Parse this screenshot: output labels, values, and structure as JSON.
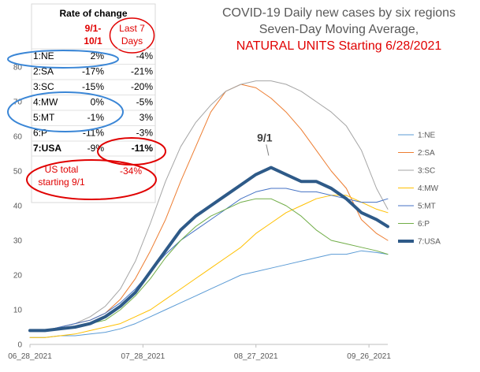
{
  "chart_data": {
    "type": "line",
    "title_lines": [
      {
        "text": "COVID-19 Daily new cases by six regions",
        "color": "#595959"
      },
      {
        "text": "Seven-Day Moving Average,",
        "color": "#595959"
      },
      {
        "text": "NATURAL UNITS Starting 6/28/2021",
        "color": "#e00000"
      }
    ],
    "x_tick_labels": [
      "06_28_2021",
      "07_28_2021",
      "08_27_2021",
      "09_26_2021"
    ],
    "x_tick_days": [
      0,
      30,
      60,
      90
    ],
    "ylim": [
      0,
      80
    ],
    "yticks": [
      0,
      10,
      20,
      30,
      40,
      50,
      60,
      70,
      80
    ],
    "x_range_days": [
      0,
      95
    ],
    "series": [
      {
        "name": "1:NE",
        "color": "#5b9bd5",
        "width": 1,
        "x": [
          0,
          4,
          8,
          12,
          16,
          20,
          24,
          28,
          32,
          36,
          40,
          44,
          48,
          52,
          56,
          60,
          64,
          68,
          72,
          76,
          80,
          84,
          88,
          92,
          95
        ],
        "values": [
          2,
          2,
          2.5,
          2.5,
          3,
          3.5,
          4.5,
          6,
          8,
          10,
          12,
          14,
          16,
          18,
          20,
          21,
          22,
          23,
          24,
          25,
          26,
          26,
          27,
          26.5,
          26
        ]
      },
      {
        "name": "2:SA",
        "color": "#ed7d31",
        "width": 1,
        "x": [
          0,
          4,
          8,
          12,
          16,
          20,
          24,
          28,
          32,
          36,
          40,
          44,
          48,
          52,
          56,
          60,
          64,
          68,
          72,
          76,
          80,
          84,
          88,
          92,
          95
        ],
        "values": [
          4,
          4,
          5,
          6,
          7,
          9,
          13,
          19,
          27,
          36,
          47,
          57,
          67,
          73,
          75,
          74,
          71,
          67,
          62,
          56,
          50,
          45,
          36,
          32,
          30
        ]
      },
      {
        "name": "3:SC",
        "color": "#a5a5a5",
        "width": 1,
        "x": [
          0,
          4,
          8,
          12,
          16,
          20,
          24,
          28,
          32,
          36,
          40,
          44,
          48,
          52,
          56,
          60,
          64,
          68,
          72,
          76,
          80,
          84,
          88,
          92,
          95
        ],
        "values": [
          4,
          4,
          5,
          6,
          8,
          11,
          16,
          24,
          35,
          47,
          57,
          64,
          69,
          73,
          75,
          76,
          76,
          75,
          73,
          70,
          67,
          63,
          56,
          45,
          39
        ]
      },
      {
        "name": "4:MW",
        "color": "#ffc000",
        "width": 1,
        "x": [
          0,
          4,
          8,
          12,
          16,
          20,
          24,
          28,
          32,
          36,
          40,
          44,
          48,
          52,
          56,
          60,
          64,
          68,
          72,
          76,
          80,
          84,
          88,
          92,
          95
        ],
        "values": [
          2,
          2,
          2.5,
          3,
          4,
          5,
          6,
          8,
          10,
          13,
          16,
          19,
          22,
          25,
          28,
          32,
          35,
          38,
          40,
          42,
          43,
          43,
          41,
          39,
          38
        ]
      },
      {
        "name": "5:MT",
        "color": "#4472c4",
        "width": 1,
        "x": [
          0,
          4,
          8,
          12,
          16,
          20,
          24,
          28,
          32,
          36,
          40,
          44,
          48,
          52,
          56,
          60,
          64,
          68,
          72,
          76,
          80,
          84,
          88,
          92,
          95
        ],
        "values": [
          4,
          4,
          5,
          6,
          7,
          9,
          12,
          16,
          21,
          26,
          30,
          33,
          36,
          39,
          42,
          44,
          45,
          45,
          44,
          44,
          43,
          42,
          41,
          41,
          42
        ]
      },
      {
        "name": "6:P",
        "color": "#70ad47",
        "width": 1,
        "x": [
          0,
          4,
          8,
          12,
          16,
          20,
          24,
          28,
          32,
          36,
          40,
          44,
          48,
          52,
          56,
          60,
          64,
          68,
          72,
          76,
          80,
          84,
          88,
          92,
          95
        ],
        "values": [
          4,
          4,
          4.5,
          5,
          6,
          7,
          10,
          14,
          19,
          25,
          30,
          34,
          37,
          39,
          41,
          42,
          42,
          40,
          37,
          33,
          30,
          29,
          28,
          27,
          26
        ]
      },
      {
        "name": "7:USA",
        "color": "#2e5a88",
        "width": 4,
        "x": [
          0,
          4,
          8,
          12,
          16,
          20,
          24,
          28,
          32,
          36,
          40,
          44,
          48,
          52,
          56,
          60,
          64,
          68,
          72,
          76,
          80,
          84,
          88,
          92,
          95
        ],
        "values": [
          4,
          4,
          4.5,
          5,
          6,
          8,
          11,
          15,
          21,
          27,
          33,
          37,
          40,
          43,
          46,
          49,
          51,
          49,
          47,
          47,
          45,
          42,
          38,
          36,
          34
        ]
      }
    ],
    "annotations": [
      {
        "text": "9/1",
        "x": 64,
        "y": 54
      }
    ],
    "legend_position": "right",
    "grid": false,
    "rate_table": {
      "title": "Rate of change",
      "col1_header": "9/1-10/1",
      "col2_header": "Last 7 Days",
      "rows": [
        {
          "label": "1:NE",
          "c1": "2%",
          "c2": "-4%"
        },
        {
          "label": "2:SA",
          "c1": "-17%",
          "c2": "-21%"
        },
        {
          "label": "3:SC",
          "c1": "-15%",
          "c2": "-20%"
        },
        {
          "label": "4:MW",
          "c1": "0%",
          "c2": "-5%"
        },
        {
          "label": "5:MT",
          "c1": "-1%",
          "c2": "3%"
        },
        {
          "label": "6:P",
          "c1": "-11%",
          "c2": "-3%"
        },
        {
          "label": "7:USA",
          "c1": "-9%",
          "c2": "-11%"
        }
      ],
      "note_label": "US total starting 9/1",
      "note_value": "-34%"
    }
  }
}
